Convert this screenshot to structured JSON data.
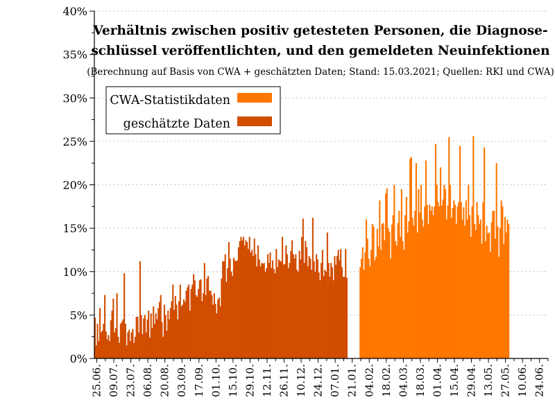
{
  "colors": {
    "cwa": "#FF7700",
    "estimated": "#D14D00",
    "grid": "#aaaaaa",
    "axis": "#000000"
  },
  "chart_data": {
    "type": "bar",
    "title": [
      "Verhältnis zwischen positiv getesteten Personen, die Diagnose-",
      "schlüssel veröffentlichten, und den gemeldeten Neuinfektionen"
    ],
    "subtitle": "(Berechnung auf Basis von CWA + geschätzten Daten; Stand: 15.03.2021; Quellen: RKI und CWA)",
    "ylabel": "",
    "xlabel": "",
    "ylim": [
      0,
      40
    ],
    "yticks": [
      "0%",
      "5%",
      "10%",
      "15%",
      "20%",
      "25%",
      "30%",
      "35%",
      "40%"
    ],
    "grid": "horizontal dotted",
    "legend_position": "top-left",
    "legend": [
      {
        "label": "CWA-Statistikdaten",
        "series": "cwa"
      },
      {
        "label": "geschätzte Daten",
        "series": "estimated"
      }
    ],
    "x_start": "2020-06-23",
    "x_end": "2021-07-01",
    "xtick_labels": [
      "25.06.",
      "09.07.",
      "23.07.",
      "06.08.",
      "20.08.",
      "03.09.",
      "17.09.",
      "01.10.",
      "15.10.",
      "29.10.",
      "12.11.",
      "26.11.",
      "10.12.",
      "24.12.",
      "07.01.",
      "21.01.",
      "04.02.",
      "18.02.",
      "04.03.",
      "18.03.",
      "01.04.",
      "15.04.",
      "29.04.",
      "13.05.",
      "27.05.",
      "10.06.",
      "24.06."
    ],
    "series": [
      {
        "name": "geschätzte Daten",
        "key": "estimated",
        "start": "2020-06-23",
        "values": [
          4.7,
          1.5,
          4.0,
          2.0,
          5.8,
          3.0,
          3.2,
          4.0,
          7.3,
          3.1,
          2.2,
          2.7,
          2.0,
          4.4,
          5.5,
          6.9,
          3.0,
          3.5,
          7.5,
          2.5,
          1.8,
          4.0,
          4.2,
          4.5,
          9.8,
          4.0,
          1.5,
          3.0,
          3.3,
          2.0,
          3.0,
          3.4,
          1.8,
          2.5,
          4.8,
          4.8,
          3.0,
          11.2,
          5.0,
          2.8,
          4.6,
          5.0,
          3.0,
          4.5,
          5.5,
          2.4,
          5.2,
          3.5,
          6.0,
          4.0,
          5.2,
          4.5,
          5.8,
          6.5,
          7.3,
          4.2,
          2.5,
          6.2,
          5.0,
          3.2,
          5.5,
          4.5,
          5.8,
          6.6,
          8.5,
          5.6,
          7.2,
          6.2,
          4.5,
          6.6,
          8.5,
          6.0,
          6.2,
          6.8,
          6.5,
          7.8,
          8.2,
          8.5,
          5.5,
          8.0,
          8.5,
          9.7,
          9.0,
          7.3,
          7.1,
          8.0,
          9.0,
          9.1,
          6.6,
          7.5,
          11.0,
          7.3,
          9.2,
          9.5,
          7.8,
          7.8,
          7.3,
          6.2,
          7.5,
          6.3,
          5.2,
          6.8,
          7.0,
          6.0,
          9.2,
          11.2,
          11.2,
          12.0,
          8.8,
          10.4,
          13.4,
          11.5,
          10.0,
          9.5,
          11.6,
          11.3,
          11.2,
          11.3,
          12.8,
          13.5,
          14.0,
          13.6,
          14.0,
          13.0,
          13.6,
          13.4,
          12.6,
          14.0,
          12.2,
          12.5,
          11.8,
          13.8,
          12.0,
          10.6,
          13.0,
          11.4,
          10.6,
          11.0,
          10.9,
          11.0,
          10.0,
          10.4,
          12.0,
          11.0,
          12.2,
          10.4,
          11.3,
          10.3,
          9.8,
          12.6,
          10.5,
          11.4,
          11.2,
          11.2,
          14.0,
          10.8,
          10.9,
          13.0,
          12.0,
          10.4,
          11.0,
          12.4,
          13.6,
          12.0,
          11.5,
          12.0,
          10.2,
          10.0,
          12.4,
          11.4,
          14.0,
          16.1,
          11.0,
          13.5,
          12.8,
          10.6,
          11.8,
          11.5,
          10.2,
          16.2,
          11.2,
          10.0,
          12.0,
          11.4,
          9.9,
          9.0,
          11.0,
          12.5,
          9.5,
          10.2,
          10.0,
          14.5,
          11.0,
          9.4,
          11.0,
          10.5,
          9.0,
          11.8,
          10.8,
          11.8,
          12.5,
          11.3,
          12.6,
          10.5,
          9.4,
          9.4,
          12.6,
          9.3
        ]
      },
      {
        "name": "CWA-Statistikdaten",
        "key": "cwa",
        "start": "2021-01-27",
        "values": [
          10.5,
          11.5,
          12.8,
          10.2,
          12.2,
          16.0,
          13.8,
          11.5,
          10.6,
          12.5,
          15.5,
          15.2,
          11.3,
          11.7,
          14.9,
          12.9,
          18.2,
          12.5,
          15.5,
          15.6,
          13.6,
          19.0,
          19.6,
          15.0,
          14.6,
          11.5,
          15.4,
          16.5,
          20.0,
          13.5,
          13.0,
          15.6,
          17.0,
          14.0,
          19.5,
          13.5,
          12.5,
          16.5,
          18.6,
          14.5,
          15.8,
          23.0,
          23.2,
          16.2,
          15.3,
          17.0,
          22.5,
          14.5,
          19.5,
          16.8,
          20.0,
          16.0,
          15.2,
          17.5,
          22.8,
          17.7,
          15.5,
          17.7,
          17.0,
          17.5,
          16.5,
          17.5,
          24.7,
          20.0,
          18.0,
          17.5,
          22.0,
          17.6,
          18.3,
          20.0,
          19.5,
          16.0,
          17.6,
          25.5,
          20.0,
          16.2,
          17.3,
          18.2,
          17.7,
          15.5,
          17.5,
          18.0,
          24.5,
          18.0,
          16.0,
          17.4,
          15.3,
          18.2,
          16.0,
          20.0,
          16.5,
          14.0,
          17.5,
          25.6,
          15.5,
          14.8,
          18.0,
          16.5,
          15.5,
          16.0,
          13.2,
          18.0,
          24.3,
          13.5,
          15.3,
          14.4,
          14.5,
          12.3,
          15.7,
          17.0,
          17.0,
          13.8,
          22.5,
          15.2,
          11.7,
          15.0,
          18.2,
          17.5,
          13.2,
          16.3,
          14.5,
          16.0,
          15.5
        ]
      }
    ]
  }
}
